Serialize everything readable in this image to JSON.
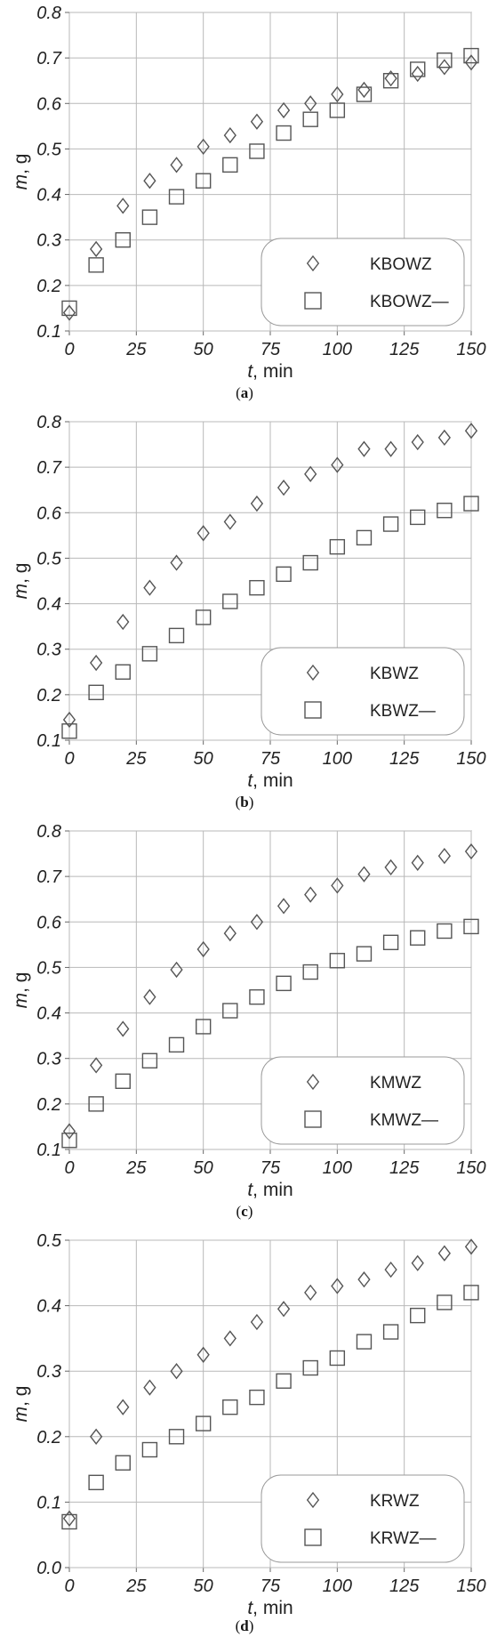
{
  "figure": {
    "panels": [
      {
        "id": "a",
        "caption_open": "(",
        "caption_letter": "a",
        "caption_close": ")"
      },
      {
        "id": "b",
        "caption_open": "(",
        "caption_letter": "b",
        "caption_close": ")"
      },
      {
        "id": "c",
        "caption_open": "(",
        "caption_letter": "c",
        "caption_close": ")"
      },
      {
        "id": "d",
        "caption_open": "(",
        "caption_letter": "d",
        "caption_close": ")"
      }
    ]
  },
  "chart_data": [
    {
      "type": "scatter",
      "title": "",
      "xlabel": "t, min",
      "ylabel": "m, g",
      "xlim": [
        0,
        150
      ],
      "ylim": [
        0.1,
        0.8
      ],
      "xticks": [
        "0",
        "25",
        "50",
        "75",
        "100",
        "125",
        "150"
      ],
      "yticks": [
        "0.1",
        "0.2",
        "0.3",
        "0.4",
        "0.5",
        "0.6",
        "0.7",
        "0.8"
      ],
      "grid": true,
      "legend_position": "bottom-right",
      "x": [
        0,
        10,
        20,
        30,
        40,
        50,
        60,
        70,
        80,
        90,
        100,
        110,
        120,
        130,
        140,
        150
      ],
      "series": [
        {
          "name": "KBOWZ",
          "marker": "diamond",
          "values": [
            0.14,
            0.28,
            0.375,
            0.43,
            0.465,
            0.505,
            0.53,
            0.56,
            0.585,
            0.6,
            0.62,
            0.63,
            0.655,
            0.665,
            0.68,
            0.69
          ]
        },
        {
          "name": "KBOWZ—",
          "marker": "square",
          "values": [
            0.15,
            0.245,
            0.3,
            0.35,
            0.395,
            0.43,
            0.465,
            0.495,
            0.535,
            0.565,
            0.585,
            0.62,
            0.65,
            0.675,
            0.695,
            0.705
          ]
        }
      ]
    },
    {
      "type": "scatter",
      "title": "",
      "xlabel": "t, min",
      "ylabel": "m, g",
      "xlim": [
        0,
        150
      ],
      "ylim": [
        0.1,
        0.8
      ],
      "xticks": [
        "0",
        "25",
        "50",
        "75",
        "100",
        "125",
        "150"
      ],
      "yticks": [
        "0.1",
        "0.2",
        "0.3",
        "0.4",
        "0.5",
        "0.6",
        "0.7",
        "0.8"
      ],
      "grid": true,
      "legend_position": "bottom-right",
      "x": [
        0,
        10,
        20,
        30,
        40,
        50,
        60,
        70,
        80,
        90,
        100,
        110,
        120,
        130,
        140,
        150
      ],
      "series": [
        {
          "name": "KBWZ",
          "marker": "diamond",
          "values": [
            0.145,
            0.27,
            0.36,
            0.435,
            0.49,
            0.555,
            0.58,
            0.62,
            0.655,
            0.685,
            0.705,
            0.74,
            0.74,
            0.755,
            0.765,
            0.78
          ]
        },
        {
          "name": "KBWZ—",
          "marker": "square",
          "values": [
            0.12,
            0.205,
            0.25,
            0.29,
            0.33,
            0.37,
            0.405,
            0.435,
            0.465,
            0.49,
            0.525,
            0.545,
            0.575,
            0.59,
            0.605,
            0.62
          ]
        }
      ]
    },
    {
      "type": "scatter",
      "title": "",
      "xlabel": "t, min",
      "ylabel": "m, g",
      "xlim": [
        0,
        150
      ],
      "ylim": [
        0.1,
        0.8
      ],
      "xticks": [
        "0",
        "25",
        "50",
        "75",
        "100",
        "125",
        "150"
      ],
      "yticks": [
        "0.1",
        "0.2",
        "0.3",
        "0.4",
        "0.5",
        "0.6",
        "0.7",
        "0.8"
      ],
      "grid": true,
      "legend_position": "bottom-right",
      "x": [
        0,
        10,
        20,
        30,
        40,
        50,
        60,
        70,
        80,
        90,
        100,
        110,
        120,
        130,
        140,
        150
      ],
      "series": [
        {
          "name": "KMWZ",
          "marker": "diamond",
          "values": [
            0.14,
            0.285,
            0.365,
            0.435,
            0.495,
            0.54,
            0.575,
            0.6,
            0.635,
            0.66,
            0.68,
            0.705,
            0.72,
            0.73,
            0.745,
            0.755
          ]
        },
        {
          "name": "KMWZ—",
          "marker": "square",
          "values": [
            0.12,
            0.2,
            0.25,
            0.295,
            0.33,
            0.37,
            0.405,
            0.435,
            0.465,
            0.49,
            0.515,
            0.53,
            0.555,
            0.565,
            0.58,
            0.59
          ]
        }
      ]
    },
    {
      "type": "scatter",
      "title": "",
      "xlabel": "t, min",
      "ylabel": "m, g",
      "xlim": [
        0,
        150
      ],
      "ylim": [
        0.0,
        0.5
      ],
      "xticks": [
        "0",
        "25",
        "50",
        "75",
        "100",
        "125",
        "150"
      ],
      "yticks": [
        "0.0",
        "0.1",
        "0.2",
        "0.3",
        "0.4",
        "0.5"
      ],
      "grid": true,
      "legend_position": "bottom-right",
      "x": [
        0,
        10,
        20,
        30,
        40,
        50,
        60,
        70,
        80,
        90,
        100,
        110,
        120,
        130,
        140,
        150
      ],
      "series": [
        {
          "name": "KRWZ",
          "marker": "diamond",
          "values": [
            0.075,
            0.2,
            0.245,
            0.275,
            0.3,
            0.325,
            0.35,
            0.375,
            0.395,
            0.42,
            0.43,
            0.44,
            0.455,
            0.465,
            0.48,
            0.49
          ]
        },
        {
          "name": "KRWZ—",
          "marker": "square",
          "values": [
            0.07,
            0.13,
            0.16,
            0.18,
            0.2,
            0.22,
            0.245,
            0.26,
            0.285,
            0.305,
            0.32,
            0.345,
            0.36,
            0.385,
            0.405,
            0.42
          ]
        }
      ]
    }
  ]
}
